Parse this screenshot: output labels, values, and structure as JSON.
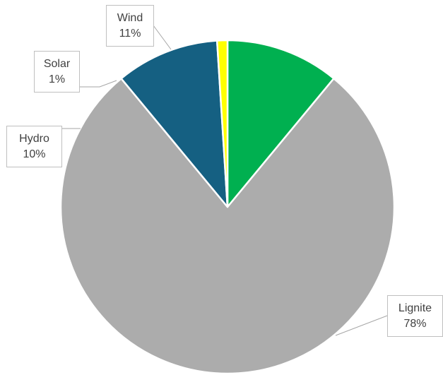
{
  "chart_data": {
    "type": "pie",
    "slices": [
      {
        "label": "Wind",
        "value": 11,
        "value_label": "11%",
        "color": "#00b050"
      },
      {
        "label": "Lignite",
        "value": 78,
        "value_label": "78%",
        "color": "#acacac"
      },
      {
        "label": "Hydro",
        "value": 10,
        "value_label": "10%",
        "color": "#156082"
      },
      {
        "label": "Solar",
        "value": 1,
        "value_label": "1%",
        "color": "#ffff00"
      }
    ],
    "start_angle_deg": 0,
    "direction": "clockwise",
    "legend": "none",
    "data_labels": "outside-callout"
  }
}
